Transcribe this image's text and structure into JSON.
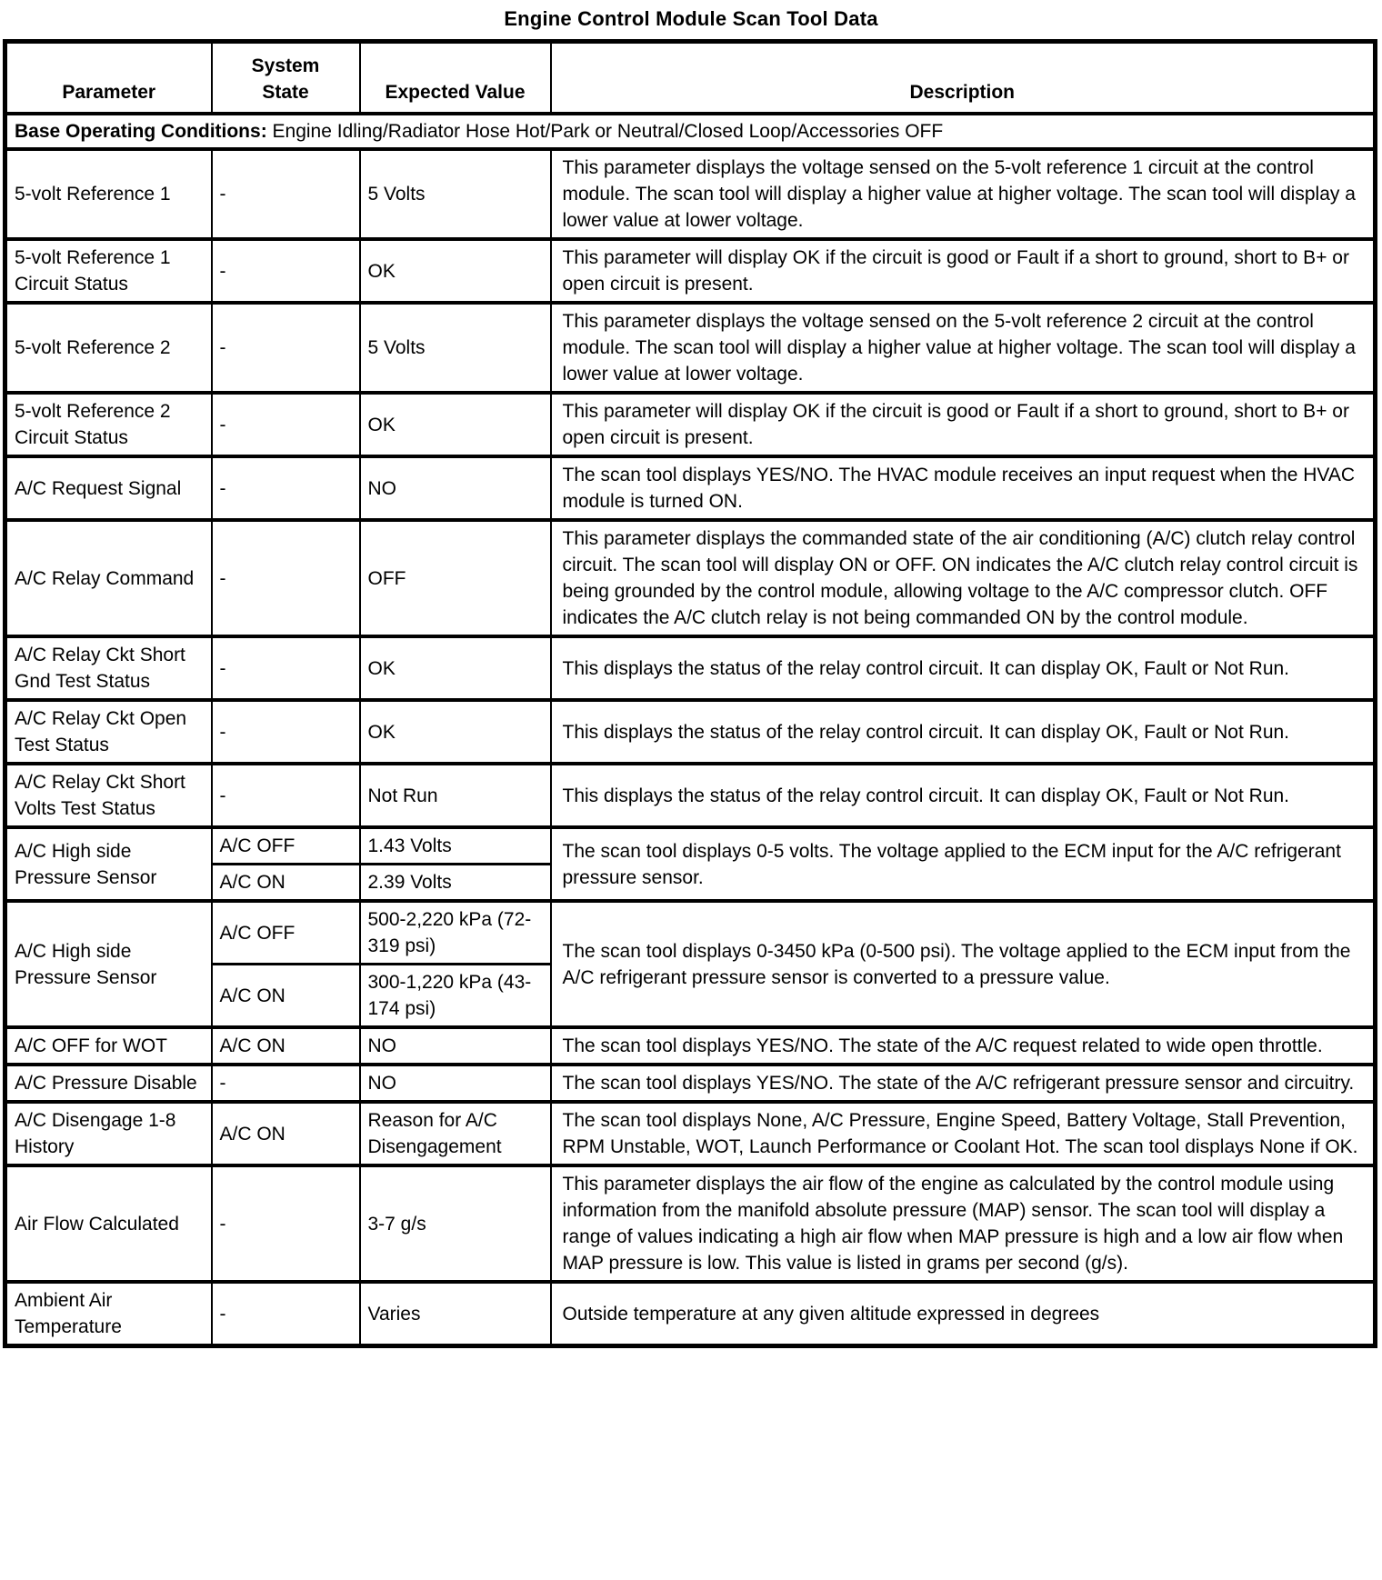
{
  "title": "Engine Control Module Scan Tool Data",
  "table": {
    "headers": {
      "parameter": "Parameter",
      "system_state": "System State",
      "expected_value": "Expected Value",
      "description": "Description"
    },
    "base_conditions": {
      "label": "Base Operating Conditions:",
      "text": " Engine Idling/Radiator Hose Hot/Park or Neutral/Closed Loop/Accessories OFF"
    },
    "rows": [
      {
        "parameter": "5-volt Reference 1",
        "states": [
          {
            "state": "-",
            "value": "5 Volts"
          }
        ],
        "description": "This parameter displays the voltage sensed on the 5-volt reference 1 circuit at the control module. The scan tool will display a higher value at higher voltage. The scan tool will display a lower value at lower voltage."
      },
      {
        "parameter": "5-volt Reference 1 Circuit Status",
        "states": [
          {
            "state": "-",
            "value": "OK"
          }
        ],
        "description": "This parameter will display OK if the circuit is good or Fault if a short to ground, short to B+ or open circuit is present."
      },
      {
        "parameter": "5-volt Reference 2",
        "states": [
          {
            "state": "-",
            "value": "5 Volts"
          }
        ],
        "description": "This parameter displays the voltage sensed on the 5-volt reference 2 circuit at the control module. The scan tool will display a higher value at higher voltage. The scan tool will display a lower value at lower voltage."
      },
      {
        "parameter": "5-volt Reference 2 Circuit Status",
        "states": [
          {
            "state": "-",
            "value": "OK"
          }
        ],
        "description": "This parameter will display OK if the circuit is good or Fault if a short to ground, short to B+ or open circuit is present."
      },
      {
        "parameter": "A/C Request Signal",
        "states": [
          {
            "state": "-",
            "value": "NO"
          }
        ],
        "description": "The scan tool displays YES/NO. The HVAC module receives an input request when the HVAC module is turned ON."
      },
      {
        "parameter": "A/C Relay Command",
        "states": [
          {
            "state": "-",
            "value": "OFF"
          }
        ],
        "description": "This parameter displays the commanded state of the air conditioning (A/C) clutch relay control circuit. The scan tool will display ON or OFF. ON indicates the A/C clutch relay control circuit is being grounded by the control module, allowing voltage to the A/C compressor clutch. OFF indicates the A/C clutch relay is not being commanded ON by the control module."
      },
      {
        "parameter": "A/C Relay Ckt Short Gnd Test Status",
        "states": [
          {
            "state": "-",
            "value": "OK"
          }
        ],
        "description": "This displays the status of the relay control circuit. It can display OK, Fault or Not Run."
      },
      {
        "parameter": "A/C Relay Ckt Open Test Status",
        "states": [
          {
            "state": "-",
            "value": "OK"
          }
        ],
        "description": "This displays the status of the relay control circuit. It can display OK, Fault or Not Run."
      },
      {
        "parameter": "A/C Relay Ckt Short Volts Test Status",
        "states": [
          {
            "state": "-",
            "value": "Not Run"
          }
        ],
        "description": "This displays the status of the relay control circuit. It can display OK, Fault or Not Run."
      },
      {
        "parameter": "A/C High side Pressure Sensor",
        "states": [
          {
            "state": "A/C OFF",
            "value": "1.43 Volts"
          },
          {
            "state": "A/C ON",
            "value": "2.39 Volts"
          }
        ],
        "description": "The scan tool displays 0-5 volts. The voltage applied to the ECM input for the A/C refrigerant pressure sensor."
      },
      {
        "parameter": "A/C High side Pressure Sensor",
        "states": [
          {
            "state": "A/C OFF",
            "value": "500-2,220 kPa (72-319 psi)"
          },
          {
            "state": "A/C ON",
            "value": "300-1,220 kPa (43-174 psi)"
          }
        ],
        "description": "The scan tool displays 0-3450  kPa (0-500 psi). The voltage applied to the ECM input from the A/C refrigerant pressure sensor is converted to a pressure value."
      },
      {
        "parameter": "A/C OFF for WOT",
        "states": [
          {
            "state": "A/C ON",
            "value": "NO"
          }
        ],
        "description": "The scan tool displays YES/NO. The state of the A/C request related to wide open throttle."
      },
      {
        "parameter": "A/C Pressure Disable",
        "states": [
          {
            "state": "-",
            "value": "NO"
          }
        ],
        "description": "The scan tool displays YES/NO. The state of the A/C refrigerant pressure sensor and circuitry."
      },
      {
        "parameter": "A/C Disengage 1-8 History",
        "states": [
          {
            "state": "A/C ON",
            "value": "Reason for A/C Disengagement"
          }
        ],
        "description": "The scan tool displays None, A/C Pressure, Engine Speed, Battery Voltage, Stall Prevention, RPM Unstable, WOT, Launch Performance or Coolant Hot. The scan tool displays None if OK."
      },
      {
        "parameter": "Air Flow Calculated",
        "states": [
          {
            "state": "-",
            "value": "3-7 g/s"
          }
        ],
        "description": "This parameter displays the air flow of the engine as calculated by the control module using information from the manifold absolute pressure (MAP) sensor. The scan tool will display a range of values indicating a high air flow when MAP pressure is high and a low air flow when MAP pressure is low. This value is listed in grams per second (g/s)."
      },
      {
        "parameter": "Ambient Air Temperature",
        "states": [
          {
            "state": "-",
            "value": "Varies"
          }
        ],
        "description": "Outside temperature at any given altitude expressed in degrees"
      }
    ]
  }
}
